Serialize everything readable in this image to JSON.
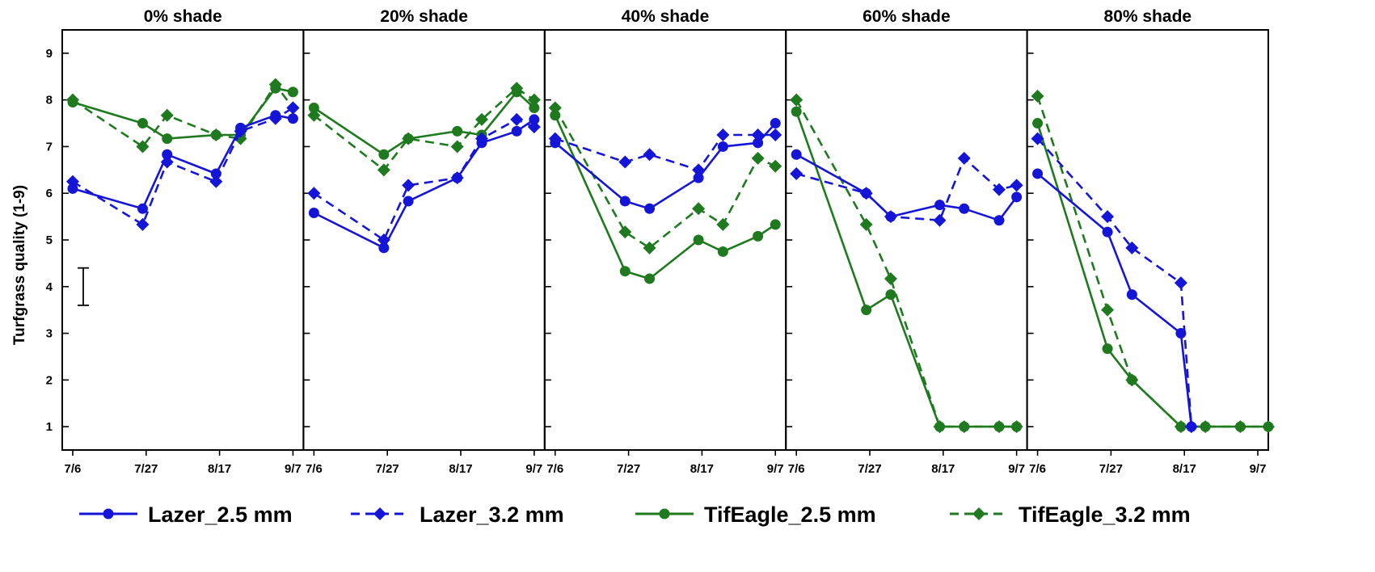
{
  "chart_data": {
    "type": "line",
    "ylabel": "Turfgrass quality (1-9)",
    "ylim": [
      0.5,
      9.5
    ],
    "yticks": [
      1,
      2,
      3,
      4,
      5,
      6,
      7,
      8,
      9
    ],
    "xlim": [
      "2021-07-03",
      "2021-09-10"
    ],
    "xticks": [
      "2021-07-06",
      "2021-07-27",
      "2021-08-17",
      "2021-09-07"
    ],
    "xtick_labels": [
      "7/6",
      "7/27",
      "8/17",
      "9/7"
    ],
    "lsd_bar": {
      "panel": "0% shade",
      "low": 3.6,
      "high": 4.4
    },
    "colors": {
      "Lazer": "#1515d8",
      "TifEagle": "#1f7a1f"
    },
    "series_styles": [
      {
        "name": "Lazer_2.5 mm",
        "color": "#1515d8",
        "dash": "solid",
        "marker": "circle"
      },
      {
        "name": "Lazer_3.2 mm",
        "color": "#1515d8",
        "dash": "dashed",
        "marker": "diamond"
      },
      {
        "name": "TifEagle_2.5 mm",
        "color": "#1f7a1f",
        "dash": "solid",
        "marker": "circle"
      },
      {
        "name": "TifEagle_3.2 mm",
        "color": "#1f7a1f",
        "dash": "dashed",
        "marker": "diamond"
      }
    ],
    "panels": [
      {
        "title": "0% shade",
        "series": [
          {
            "name": "Lazer_2.5 mm",
            "x": [
              "2021-07-06",
              "2021-07-26",
              "2021-08-02",
              "2021-08-16",
              "2021-08-23",
              "2021-09-02",
              "2021-09-07"
            ],
            "y": [
              6.1,
              5.67,
              6.83,
              6.42,
              7.4,
              7.67,
              7.6
            ]
          },
          {
            "name": "Lazer_3.2 mm",
            "x": [
              "2021-07-06",
              "2021-07-26",
              "2021-08-02",
              "2021-08-16",
              "2021-08-23",
              "2021-09-02",
              "2021-09-07"
            ],
            "y": [
              6.25,
              5.33,
              6.67,
              6.25,
              7.33,
              7.6,
              7.83
            ]
          },
          {
            "name": "TifEagle_2.5 mm",
            "x": [
              "2021-07-06",
              "2021-07-26",
              "2021-08-02",
              "2021-08-16",
              "2021-08-23",
              "2021-09-02",
              "2021-09-07"
            ],
            "y": [
              7.95,
              7.5,
              7.17,
              7.25,
              7.25,
              8.25,
              8.17
            ]
          },
          {
            "name": "TifEagle_3.2 mm",
            "x": [
              "2021-07-06",
              "2021-07-26",
              "2021-08-02",
              "2021-08-16",
              "2021-08-23",
              "2021-09-02",
              "2021-09-07"
            ],
            "y": [
              8.0,
              7.0,
              7.67,
              7.25,
              7.17,
              8.33,
              7.83
            ]
          }
        ]
      },
      {
        "title": "20% shade",
        "series": [
          {
            "name": "Lazer_2.5 mm",
            "x": [
              "2021-07-06",
              "2021-07-26",
              "2021-08-02",
              "2021-08-16",
              "2021-08-23",
              "2021-09-02",
              "2021-09-07"
            ],
            "y": [
              5.58,
              4.83,
              5.83,
              6.33,
              7.08,
              7.33,
              7.58
            ]
          },
          {
            "name": "Lazer_3.2 mm",
            "x": [
              "2021-07-06",
              "2021-07-26",
              "2021-08-02",
              "2021-08-16",
              "2021-08-23",
              "2021-09-02",
              "2021-09-07"
            ],
            "y": [
              6.0,
              5.0,
              6.17,
              6.33,
              7.17,
              7.58,
              7.42
            ]
          },
          {
            "name": "TifEagle_2.5 mm",
            "x": [
              "2021-07-06",
              "2021-07-26",
              "2021-08-02",
              "2021-08-16",
              "2021-08-23",
              "2021-09-02",
              "2021-09-07"
            ],
            "y": [
              7.83,
              6.83,
              7.17,
              7.33,
              7.25,
              8.17,
              7.83
            ]
          },
          {
            "name": "TifEagle_3.2 mm",
            "x": [
              "2021-07-06",
              "2021-07-26",
              "2021-08-02",
              "2021-08-16",
              "2021-08-23",
              "2021-09-02",
              "2021-09-07"
            ],
            "y": [
              7.67,
              6.5,
              7.17,
              7.0,
              7.58,
              8.25,
              8.0
            ]
          }
        ]
      },
      {
        "title": "40% shade",
        "series": [
          {
            "name": "Lazer_2.5 mm",
            "x": [
              "2021-07-06",
              "2021-07-26",
              "2021-08-02",
              "2021-08-16",
              "2021-08-23",
              "2021-09-02",
              "2021-09-07"
            ],
            "y": [
              7.08,
              5.83,
              5.67,
              6.33,
              7.0,
              7.08,
              7.5
            ]
          },
          {
            "name": "Lazer_3.2 mm",
            "x": [
              "2021-07-06",
              "2021-07-26",
              "2021-08-02",
              "2021-08-16",
              "2021-08-23",
              "2021-09-02",
              "2021-09-07"
            ],
            "y": [
              7.17,
              6.67,
              6.83,
              6.5,
              7.25,
              7.25,
              7.25
            ]
          },
          {
            "name": "TifEagle_2.5 mm",
            "x": [
              "2021-07-06",
              "2021-07-26",
              "2021-08-02",
              "2021-08-16",
              "2021-08-23",
              "2021-09-02",
              "2021-09-07"
            ],
            "y": [
              7.67,
              4.33,
              4.17,
              5.0,
              4.75,
              5.08,
              5.33
            ]
          },
          {
            "name": "TifEagle_3.2 mm",
            "x": [
              "2021-07-06",
              "2021-07-26",
              "2021-08-02",
              "2021-08-16",
              "2021-08-23",
              "2021-09-02",
              "2021-09-07"
            ],
            "y": [
              7.83,
              5.17,
              4.83,
              5.67,
              5.33,
              6.75,
              6.58
            ]
          }
        ]
      },
      {
        "title": "60% shade",
        "series": [
          {
            "name": "Lazer_2.5 mm",
            "x": [
              "2021-07-06",
              "2021-07-26",
              "2021-08-02",
              "2021-08-16",
              "2021-08-23",
              "2021-09-02",
              "2021-09-07"
            ],
            "y": [
              6.83,
              6.0,
              5.5,
              5.75,
              5.67,
              5.42,
              5.92
            ]
          },
          {
            "name": "Lazer_3.2 mm",
            "x": [
              "2021-07-06",
              "2021-07-26",
              "2021-08-02",
              "2021-08-16",
              "2021-08-23",
              "2021-09-02",
              "2021-09-07"
            ],
            "y": [
              6.42,
              6.0,
              5.5,
              5.42,
              6.75,
              6.08,
              6.17
            ]
          },
          {
            "name": "TifEagle_2.5 mm",
            "x": [
              "2021-07-06",
              "2021-07-26",
              "2021-08-02",
              "2021-08-16",
              "2021-08-23",
              "2021-09-02",
              "2021-09-07"
            ],
            "y": [
              7.75,
              3.5,
              3.83,
              1.0,
              1.0,
              1.0,
              1.0
            ]
          },
          {
            "name": "TifEagle_3.2 mm",
            "x": [
              "2021-07-06",
              "2021-07-26",
              "2021-08-02",
              "2021-08-16",
              "2021-08-23",
              "2021-09-02",
              "2021-09-07"
            ],
            "y": [
              8.0,
              5.33,
              4.17,
              1.0,
              1.0,
              1.0,
              1.0
            ]
          }
        ]
      },
      {
        "title": "80% shade",
        "series": [
          {
            "name": "Lazer_2.5 mm",
            "x": [
              "2021-07-06",
              "2021-07-26",
              "2021-08-02",
              "2021-08-16",
              "2021-08-19"
            ],
            "y": [
              6.42,
              5.17,
              3.83,
              3.0,
              1.0
            ]
          },
          {
            "name": "Lazer_3.2 mm",
            "x": [
              "2021-07-06",
              "2021-07-26",
              "2021-08-02",
              "2021-08-16",
              "2021-08-19"
            ],
            "y": [
              7.17,
              5.5,
              4.83,
              4.08,
              1.0
            ]
          },
          {
            "name": "TifEagle_2.5 mm",
            "x": [
              "2021-07-06",
              "2021-07-26",
              "2021-08-02",
              "2021-08-16",
              "2021-08-23",
              "2021-09-02",
              "2021-09-10"
            ],
            "y": [
              7.5,
              2.67,
              2.0,
              1.0,
              1.0,
              1.0,
              1.0
            ]
          },
          {
            "name": "TifEagle_3.2 mm",
            "x": [
              "2021-07-06",
              "2021-07-26",
              "2021-08-02",
              "2021-08-16",
              "2021-08-23",
              "2021-09-02",
              "2021-09-10"
            ],
            "y": [
              8.08,
              3.5,
              2.0,
              1.0,
              1.0,
              1.0,
              1.0
            ]
          }
        ]
      }
    ]
  }
}
